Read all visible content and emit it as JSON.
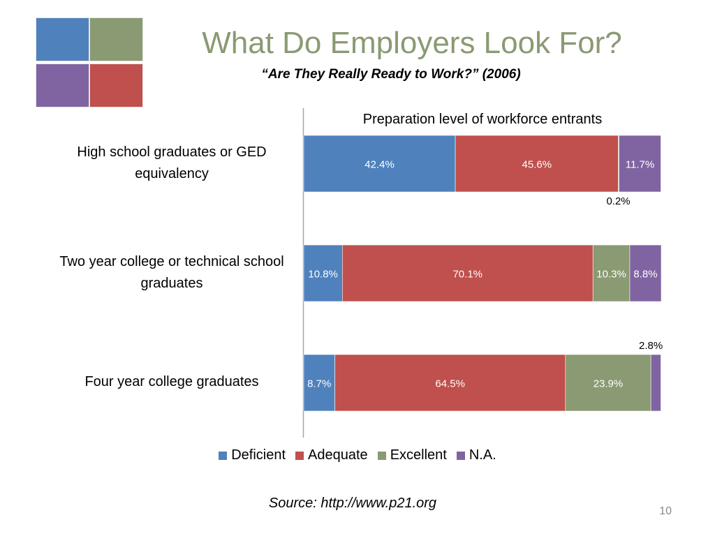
{
  "slide": {
    "title": "What Do Employers Look For?",
    "subtitle": "“Are They Really Ready to Work?” (2006)",
    "source": "Source: http://www.p21.org",
    "page_number": "10"
  },
  "logo": {
    "colors": [
      "#4f81bd",
      "#8a9a72",
      "#8064a2",
      "#c0504d"
    ]
  },
  "chart_data": {
    "type": "bar",
    "orientation": "horizontal",
    "stacked": true,
    "title": "Preparation level of workforce entrants",
    "categories": [
      "High school graduates or GED equivalency",
      "Two year college or technical school graduates",
      "Four year college graduates"
    ],
    "series": [
      {
        "name": "Deficient",
        "color": "#4f81bd",
        "values": [
          42.4,
          10.8,
          8.7
        ],
        "labels": [
          "42.4%",
          "10.8%",
          "8.7%"
        ]
      },
      {
        "name": "Adequate",
        "color": "#c0504d",
        "values": [
          45.6,
          70.1,
          64.5
        ],
        "labels": [
          "45.6%",
          "70.1%",
          "64.5%"
        ]
      },
      {
        "name": "Excellent",
        "color": "#8a9a72",
        "values": [
          0.2,
          10.3,
          23.9
        ],
        "labels": [
          "0.2%",
          "10.3%",
          "23.9%"
        ]
      },
      {
        "name": "N.A.",
        "color": "#8064a2",
        "values": [
          11.7,
          8.8,
          2.8
        ],
        "labels": [
          "11.7%",
          "8.8%",
          "2.8%"
        ]
      }
    ],
    "xlim": [
      0,
      100
    ],
    "grid": false,
    "legend": "bottom"
  }
}
